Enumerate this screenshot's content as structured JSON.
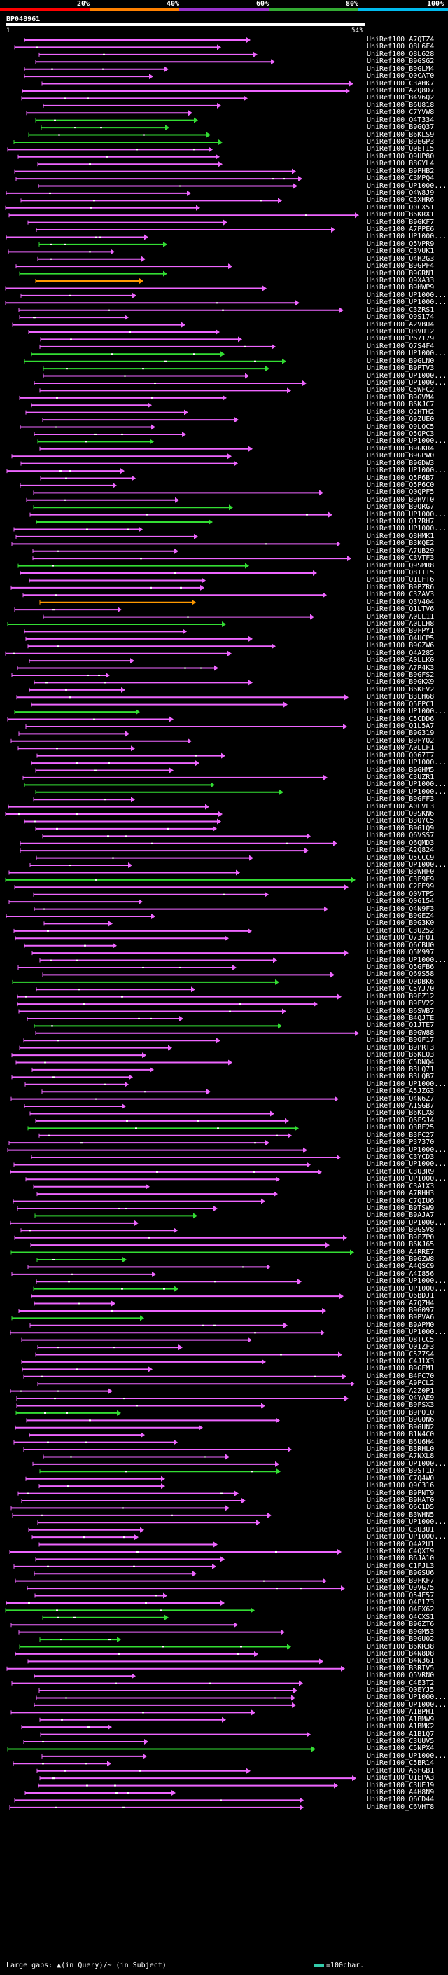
{
  "scale": {
    "ticks": [
      "20%",
      "40%",
      "60%",
      "80%",
      "100%"
    ],
    "colors": [
      "#ff0000",
      "#ff8000",
      "#9933cc",
      "#33aa33",
      "#00bbee"
    ]
  },
  "query": {
    "id": "BP048961",
    "start": "1",
    "end": "543"
  },
  "colors": {
    "magenta": "#ee66ff",
    "green": "#33dd33",
    "orange": "#ff9900",
    "gap": "#ffffff"
  },
  "hits": [
    "UniRef100_A7QTZ4",
    "UniRef100_Q8L6F4",
    "UniRef100_Q8L628",
    "UniRef100_B9GSG2",
    "UniRef100_B9GLM4",
    "UniRef100_Q0CAT0",
    "UniRef100_C3AHK7",
    "UniRef100_A2Q8D7",
    "UniRef100_B4V6Q2",
    "UniRef100_B6U818",
    "UniRef100_C7YVW8",
    "UniRef100_Q4T334",
    "UniRef100_B9GQ37",
    "UniRef100_B6KLS9",
    "UniRef100_B9EGP3",
    "UniRef100_Q0ETI5",
    "UniRef100_Q9UP80",
    "UniRef100_B8GYL4",
    "UniRef100_B9PHB2",
    "UniRef100_C3MPQ4",
    "UniRef100_UP1000...",
    "UniRef100_Q4W8J9",
    "UniRef100_C3XHR6",
    "UniRef100_Q0CX51",
    "UniRef100_B6KRX1",
    "UniRef100_B9GKF7",
    "UniRef100_A7PPE6",
    "UniRef100_UP1000...",
    "UniRef100_Q5VPR9",
    "UniRef100_C3VUK1",
    "UniRef100_Q4H2G3",
    "UniRef100_B9GPF4",
    "UniRef100_B9GRN1",
    "UniRef100_Q9XA33",
    "UniRef100_B9HWP9",
    "UniRef100_UP1000...",
    "UniRef100_UP1000...",
    "UniRef100_C3ZRS1",
    "UniRef100_Q9S174",
    "UniRef100_A2VBU4",
    "UniRef100_Q8VU12",
    "UniRef100_P67179",
    "UniRef100_Q7S4F4",
    "UniRef100_UP1000...",
    "UniRef100_B9GLN0",
    "UniRef100_B9PTV3",
    "UniRef100_UP1000...",
    "UniRef100_UP1000...",
    "UniRef100_C5WFC2",
    "UniRef100_B9GVM4",
    "UniRef100_B6KJC7",
    "UniRef100_Q2HTH2",
    "UniRef100_Q9ZUE0",
    "UniRef100_Q9LQC5",
    "UniRef100_Q5QPC3",
    "UniRef100_UP1000...",
    "UniRef100_B9GKR4",
    "UniRef100_B9GPW0",
    "UniRef100_B9GDW3",
    "UniRef100_UP1000...",
    "UniRef100_Q5P6B7",
    "UniRef100_Q5P6C0",
    "UniRef100_Q0QPF5",
    "UniRef100_B9HVT0",
    "UniRef100_B9QRG7",
    "UniRef100_UP1000...",
    "UniRef100_Q17RH7",
    "UniRef100_UP1000...",
    "UniRef100_Q8HMK1",
    "UniRef100_B3KQE2",
    "UniRef100_A7UB29",
    "UniRef100_C3VTF3",
    "UniRef100_Q9SMR8",
    "UniRef100_Q8IIT5",
    "UniRef100_Q1LFT6",
    "UniRef100_B9PZR6",
    "UniRef100_C3ZAV3",
    "UniRef100_Q3V404",
    "UniRef100_Q1LTV6",
    "UniRef100_A0LL11",
    "UniRef100_A0LLH8",
    "UniRef100_B9FPY1",
    "UniRef100_Q4UCP5",
    "UniRef100_B9GZW6",
    "UniRef100_Q4A285",
    "UniRef100_A0LLK0",
    "UniRef100_A7P4K3",
    "UniRef100_B9GFS2",
    "UniRef100_B9GKX9",
    "UniRef100_B6KFV2",
    "UniRef100_B3LH68",
    "UniRef100_Q5EPC1",
    "UniRef100_UP1000...",
    "UniRef100_C5CDD6",
    "UniRef100_Q1L5A7",
    "UniRef100_B9G319",
    "UniRef100_B9FYQ2",
    "UniRef100_A0LLF1",
    "UniRef100_Q067T7",
    "UniRef100_UP1000...",
    "UniRef100_B9GHM5",
    "UniRef100_C3UZR1",
    "UniRef100_UP1000...",
    "UniRef100_UP1000...",
    "UniRef100_B9GFF3",
    "UniRef100_A0LVL3",
    "UniRef100_Q9SKN6",
    "UniRef100_B3QYC5",
    "UniRef100_B9G1Q9",
    "UniRef100_Q6VSS7",
    "UniRef100_Q6QMD3",
    "UniRef100_A2Q824",
    "UniRef100_Q5CCC9",
    "UniRef100_UP1000...",
    "UniRef100_B3WHF0",
    "UniRef100_C3F9E9",
    "UniRef100_C2FE99",
    "UniRef100_Q0VTP5",
    "UniRef100_Q06154",
    "UniRef100_Q4N9F3",
    "UniRef100_B9GEZ4",
    "UniRef100_B9G3K0",
    "UniRef100_C3U252",
    "UniRef100_Q73FQ1",
    "UniRef100_Q6CBU0",
    "UniRef100_Q5M997",
    "UniRef100_UP1000...",
    "UniRef100_Q5GFB6",
    "UniRef100_Q69S58",
    "UniRef100_Q0DBK6",
    "UniRef100_C5YJ70",
    "UniRef100_B9FZ12",
    "UniRef100_B9FV22",
    "UniRef100_B6SWB7",
    "UniRef100_B4QJTE",
    "UniRef100_Q1JTE7",
    "UniRef100_B9GW88",
    "UniRef100_B9QF17",
    "UniRef100_B9PRT3",
    "UniRef100_B6KLQ3",
    "UniRef100_C5DNQ4",
    "UniRef100_B3LQ71",
    "UniRef100_B3LQB7",
    "UniRef100_UP1000...",
    "UniRef100_A5JZG3",
    "UniRef100_Q4N6Z7",
    "UniRef100_A1SGB7",
    "UniRef100_B6KLX8",
    "UniRef100_Q6FSJ4",
    "UniRef100_Q3BF25",
    "UniRef100_B3FC27",
    "UniRef100_P37370",
    "UniRef100_UP1000...",
    "UniRef100_C3YCD3",
    "UniRef100_UP1000...",
    "UniRef100_C3U3R9",
    "UniRef100_UP1000...",
    "UniRef100_C3A1X3",
    "UniRef100_A7RHH3",
    "UniRef100_C7QIU6",
    "UniRef100_B9TSW9",
    "UniRef100_B9AJA7",
    "UniRef100_UP1000...",
    "UniRef100_B9GSV8",
    "UniRef100_B9FZP0",
    "UniRef100_B6KJ65",
    "UniRef100_A4RRE7",
    "UniRef100_B9GZW8",
    "UniRef100_A4QSC9",
    "UniRef100_A4I856",
    "UniRef100_UP1000...",
    "UniRef100_UP1000...",
    "UniRef100_Q6BDJ1",
    "UniRef100_A7QZH4",
    "UniRef100_B9G097",
    "UniRef100_B9PVA6",
    "UniRef100_B9APM0",
    "UniRef100_UP1000...",
    "UniRef100_Q8TCC5",
    "UniRef100_Q01ZF3",
    "UniRef100_C5Z7S4",
    "UniRef100_C4J1X3",
    "UniRef100_B9GFM1",
    "UniRef100_B4FC70",
    "UniRef100_A9PCL2",
    "UniRef100_A2Z0P1",
    "UniRef100_Q4YAE9",
    "UniRef100_B9FSX3",
    "UniRef100_B9PQ10",
    "UniRef100_B9GQN6",
    "UniRef100_B9GUN2",
    "UniRef100_B1N4C0",
    "UniRef100_B6U6H4",
    "UniRef100_B3RHL0",
    "UniRef100_A7NXL8",
    "UniRef100_UP1000...",
    "UniRef100_B9ST1D",
    "UniRef100_C7Q4W0",
    "UniRef100_Q9C316",
    "UniRef100_B9PNT9",
    "UniRef100_B9HAT0",
    "UniRef100_Q6C1D5",
    "UniRef100_B3WHN5",
    "UniRef100_UP1000...",
    "UniRef100_C3U3U1",
    "UniRef100_UP1000...",
    "UniRef100_Q4A2U1",
    "UniRef100_C4QXI9",
    "UniRef100_B6JA10",
    "UniRef100_C1FJL3",
    "UniRef100_B9GSU6",
    "UniRef100_B9FKF7",
    "UniRef100_Q9VG75",
    "UniRef100_Q54E57",
    "UniRef100_Q4P173",
    "UniRef100_Q4FX62",
    "UniRef100_Q4CXS1",
    "UniRef100_B9GZT6",
    "UniRef100_B9GM53",
    "UniRef100_B9GU02",
    "UniRef100_B6KR38",
    "UniRef100_B4N8D8",
    "UniRef100_B4N361",
    "UniRef100_B3RIV5",
    "UniRef100_Q5VRN0",
    "UniRef100_C4E3T2",
    "UniRef100_Q0EYJ5",
    "UniRef100_UP1000...",
    "UniRef100_UP1000...",
    "UniRef100_A1BPH1",
    "UniRef100_A1BMW9",
    "UniRef100_A1BMK2",
    "UniRef100_A1B1Q7",
    "UniRef100_C3UUV5",
    "UniRef100_C5NPX4",
    "UniRef100_UP1000...",
    "UniRef100_C5BR14",
    "UniRef100_A6FGB1",
    "UniRef100_Q1EPA3",
    "UniRef100_C3UEJ9",
    "UniRef100_A4H8N9",
    "UniRef100_Q6CD44",
    "UniRef100_C6VHT8"
  ],
  "legend": {
    "text": "Large gaps: ▲(in Query)/~ (in Subject)",
    "scale": "=100char."
  }
}
